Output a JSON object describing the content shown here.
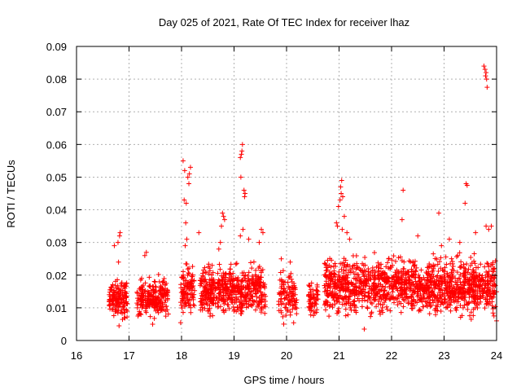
{
  "chart_data": {
    "type": "scatter",
    "title": "Day 025 of 2021, Rate Of TEC Index for receiver lhaz",
    "xlabel": "GPS time / hours",
    "ylabel": "ROTI / TECUs",
    "xlim": [
      16,
      24
    ],
    "ylim": [
      0,
      0.09
    ],
    "xticks": [
      16,
      17,
      18,
      19,
      20,
      21,
      22,
      23,
      24
    ],
    "xtick_labels": [
      "16",
      "17",
      "18",
      "19",
      "20",
      "21",
      "22",
      "23",
      "24"
    ],
    "yticks": [
      0,
      0.01,
      0.02,
      0.03,
      0.04,
      0.05,
      0.06,
      0.07,
      0.08,
      0.09
    ],
    "ytick_labels": [
      "0",
      "0.01",
      "0.02",
      "0.03",
      "0.04",
      "0.05",
      "0.06",
      "0.07",
      "0.08",
      "0.09"
    ],
    "grid": true,
    "marker": "+",
    "color": "#ff0000",
    "series": [
      {
        "name": "ROTI",
        "density_segments": [
          {
            "x_range": [
              16.62,
              16.97
            ],
            "y_range": [
              0.005,
              0.02
            ],
            "n": 140
          },
          {
            "x_range": [
              17.15,
              17.75
            ],
            "y_range": [
              0.005,
              0.021
            ],
            "n": 240
          },
          {
            "x_range": [
              17.98,
              18.25
            ],
            "y_range": [
              0.004,
              0.025
            ],
            "n": 110
          },
          {
            "x_range": [
              18.35,
              19.6
            ],
            "y_range": [
              0.005,
              0.026
            ],
            "n": 520
          },
          {
            "x_range": [
              19.85,
              20.2
            ],
            "y_range": [
              0.004,
              0.024
            ],
            "n": 110
          },
          {
            "x_range": [
              20.42,
              20.6
            ],
            "y_range": [
              0.005,
              0.02
            ],
            "n": 60
          },
          {
            "x_range": [
              20.72,
              24.0
            ],
            "y_range": [
              0.005,
              0.028
            ],
            "n": 1400
          }
        ],
        "points": [
          {
            "x": 16.72,
            "y": 0.029
          },
          {
            "x": 16.79,
            "y": 0.03
          },
          {
            "x": 16.8,
            "y": 0.024
          },
          {
            "x": 16.82,
            "y": 0.032
          },
          {
            "x": 16.83,
            "y": 0.033
          },
          {
            "x": 16.81,
            "y": 0.0045
          },
          {
            "x": 17.3,
            "y": 0.026
          },
          {
            "x": 17.33,
            "y": 0.027
          },
          {
            "x": 17.45,
            "y": 0.005
          },
          {
            "x": 18.03,
            "y": 0.055
          },
          {
            "x": 18.06,
            "y": 0.052
          },
          {
            "x": 18.12,
            "y": 0.05
          },
          {
            "x": 18.15,
            "y": 0.051
          },
          {
            "x": 18.17,
            "y": 0.053
          },
          {
            "x": 18.14,
            "y": 0.048
          },
          {
            "x": 18.05,
            "y": 0.043
          },
          {
            "x": 18.09,
            "y": 0.042
          },
          {
            "x": 18.08,
            "y": 0.036
          },
          {
            "x": 18.1,
            "y": 0.031
          },
          {
            "x": 18.07,
            "y": 0.029
          },
          {
            "x": 18.33,
            "y": 0.033
          },
          {
            "x": 18.78,
            "y": 0.039
          },
          {
            "x": 18.8,
            "y": 0.038
          },
          {
            "x": 18.82,
            "y": 0.037
          },
          {
            "x": 18.76,
            "y": 0.035
          },
          {
            "x": 18.74,
            "y": 0.03
          },
          {
            "x": 18.71,
            "y": 0.028
          },
          {
            "x": 19.12,
            "y": 0.032
          },
          {
            "x": 19.16,
            "y": 0.06
          },
          {
            "x": 19.15,
            "y": 0.058
          },
          {
            "x": 19.14,
            "y": 0.057
          },
          {
            "x": 19.12,
            "y": 0.056
          },
          {
            "x": 19.13,
            "y": 0.05
          },
          {
            "x": 19.19,
            "y": 0.046
          },
          {
            "x": 19.21,
            "y": 0.045
          },
          {
            "x": 19.2,
            "y": 0.044
          },
          {
            "x": 19.17,
            "y": 0.034
          },
          {
            "x": 19.28,
            "y": 0.031
          },
          {
            "x": 19.52,
            "y": 0.034
          },
          {
            "x": 19.55,
            "y": 0.033
          },
          {
            "x": 19.48,
            "y": 0.03
          },
          {
            "x": 19.9,
            "y": 0.025
          },
          {
            "x": 20.07,
            "y": 0.024
          },
          {
            "x": 20.95,
            "y": 0.036
          },
          {
            "x": 20.97,
            "y": 0.035
          },
          {
            "x": 20.99,
            "y": 0.041
          },
          {
            "x": 21.02,
            "y": 0.043
          },
          {
            "x": 21.04,
            "y": 0.045
          },
          {
            "x": 21.03,
            "y": 0.047
          },
          {
            "x": 21.05,
            "y": 0.049
          },
          {
            "x": 21.07,
            "y": 0.044
          },
          {
            "x": 21.1,
            "y": 0.038
          },
          {
            "x": 21.06,
            "y": 0.034
          },
          {
            "x": 21.15,
            "y": 0.033
          },
          {
            "x": 21.2,
            "y": 0.031
          },
          {
            "x": 21.48,
            "y": 0.0035
          },
          {
            "x": 22.22,
            "y": 0.046
          },
          {
            "x": 22.2,
            "y": 0.037
          },
          {
            "x": 22.5,
            "y": 0.032
          },
          {
            "x": 22.9,
            "y": 0.039
          },
          {
            "x": 22.95,
            "y": 0.029
          },
          {
            "x": 23.1,
            "y": 0.031
          },
          {
            "x": 23.4,
            "y": 0.042
          },
          {
            "x": 23.42,
            "y": 0.048
          },
          {
            "x": 23.44,
            "y": 0.0475
          },
          {
            "x": 23.76,
            "y": 0.084
          },
          {
            "x": 23.78,
            "y": 0.083
          },
          {
            "x": 23.8,
            "y": 0.082
          },
          {
            "x": 23.79,
            "y": 0.081
          },
          {
            "x": 23.81,
            "y": 0.08
          },
          {
            "x": 23.82,
            "y": 0.0775
          },
          {
            "x": 23.8,
            "y": 0.035
          },
          {
            "x": 23.85,
            "y": 0.034
          },
          {
            "x": 23.9,
            "y": 0.035
          },
          {
            "x": 23.95,
            "y": 0.0075
          },
          {
            "x": 24.0,
            "y": 0.006
          },
          {
            "x": 23.6,
            "y": 0.033
          },
          {
            "x": 23.3,
            "y": 0.03
          }
        ]
      }
    ]
  }
}
